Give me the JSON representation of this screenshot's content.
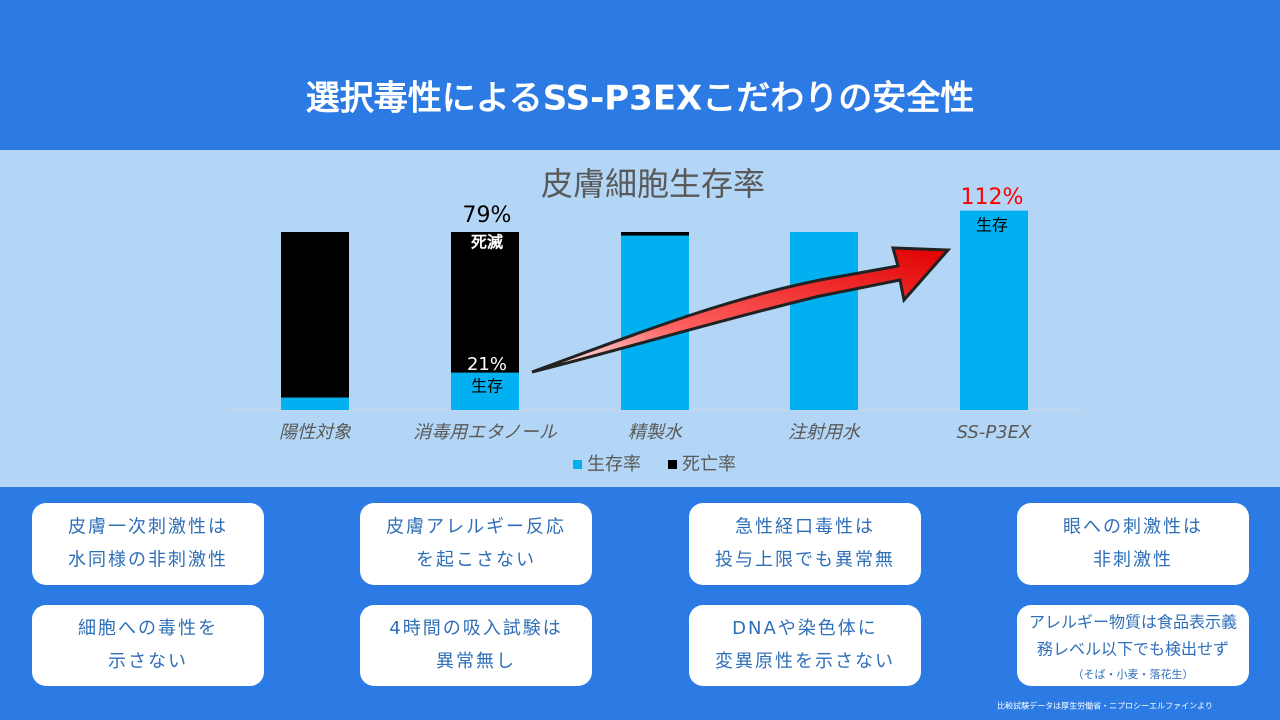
{
  "header": {
    "title": "選択毒性によるSS‐P3EXこだわりの安全性"
  },
  "chart_data": {
    "type": "stacked-bar",
    "title": "皮膚細胞生存率",
    "categories": [
      "陽性対象",
      "消毒用エタノール",
      "精製水",
      "注射用水",
      "SS-P3EX"
    ],
    "series": [
      {
        "name": "生存率",
        "color": "#00b0f0",
        "values": [
          7,
          21,
          98,
          100,
          112
        ],
        "value_labels": [
          null,
          "21%",
          null,
          null,
          "112%"
        ]
      },
      {
        "name": "死亡率",
        "color": "#000000",
        "values": [
          93,
          79,
          2,
          0,
          0
        ],
        "value_labels": [
          null,
          "79%",
          null,
          null,
          null
        ]
      }
    ],
    "annotations": [
      "死滅",
      "生存",
      "生存"
    ],
    "legend": "bottom"
  },
  "cards": [
    {
      "lines": [
        "皮膚一次刺激性は",
        "水同様の非刺激性"
      ]
    },
    {
      "lines": [
        "皮膚アレルギー反応",
        "を起こさない"
      ]
    },
    {
      "lines": [
        "急性経口毒性は",
        "投与上限でも異常無"
      ]
    },
    {
      "lines": [
        "眼への刺激性は",
        "非刺激性"
      ]
    },
    {
      "lines": [
        "細胞への毒性を",
        "示さない"
      ]
    },
    {
      "lines": [
        "4時間の吸入試験は",
        "異常無し"
      ]
    },
    {
      "lines": [
        "DNAや染色体に",
        "変異原性を示さない"
      ]
    },
    {
      "lines": [
        "アレルギー物質は食品表示義",
        "務レベル以下でも検出せず",
        "（そば・小麦・落花生）"
      ]
    }
  ],
  "footnote": "比較試験データは厚生労働省・ニプロシーエルファインより"
}
